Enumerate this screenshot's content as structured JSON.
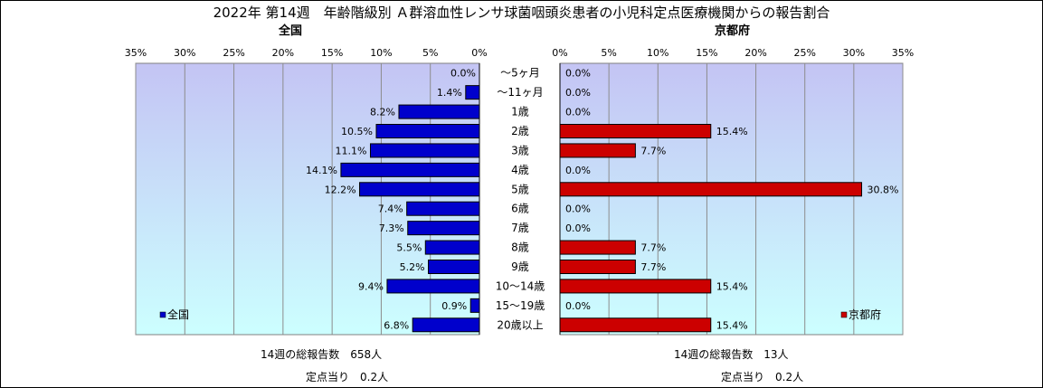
{
  "title": "2022年 第14週　年齢階級別 Ａ群溶血性レンサ球菌咽頭炎患者の小児科定点医療機関からの報告割合",
  "chart_data": [
    {
      "type": "bar",
      "orientation": "horizontal",
      "title": "全国",
      "axis_direction": "reversed",
      "xlim": [
        0,
        35
      ],
      "tick_values": [
        0,
        5,
        10,
        15,
        20,
        25,
        30,
        35
      ],
      "tick_labels": [
        "0%",
        "5%",
        "10%",
        "15%",
        "20%",
        "25%",
        "30%",
        "35%"
      ],
      "grid": true,
      "legend_position": "bottom-left",
      "series": [
        {
          "name": "全国",
          "color": "#0000CC",
          "values": [
            0.0,
            1.4,
            8.2,
            10.5,
            11.1,
            14.1,
            12.2,
            7.4,
            7.3,
            5.5,
            5.2,
            9.4,
            0.9,
            6.8
          ],
          "labels": [
            "0.0%",
            "1.4%",
            "8.2%",
            "10.5%",
            "11.1%",
            "14.1%",
            "12.2%",
            "7.4%",
            "7.3%",
            "5.5%",
            "5.2%",
            "9.4%",
            "0.9%",
            "6.8%"
          ]
        }
      ]
    },
    {
      "type": "bar",
      "orientation": "horizontal",
      "title": "京都府",
      "xlim": [
        0,
        35
      ],
      "tick_values": [
        0,
        5,
        10,
        15,
        20,
        25,
        30,
        35
      ],
      "tick_labels": [
        "0%",
        "5%",
        "10%",
        "15%",
        "20%",
        "25%",
        "30%",
        "35%"
      ],
      "grid": true,
      "legend_position": "bottom-right",
      "series": [
        {
          "name": "京都府",
          "color": "#CC0000",
          "values": [
            0.0,
            0.0,
            0.0,
            15.4,
            7.7,
            0.0,
            30.8,
            0.0,
            0.0,
            7.7,
            7.7,
            15.4,
            0.0,
            15.4
          ],
          "labels": [
            "0.0%",
            "0.0%",
            "0.0%",
            "15.4%",
            "7.7%",
            "0.0%",
            "30.8%",
            "0.0%",
            "0.0%",
            "7.7%",
            "7.7%",
            "15.4%",
            "0.0%",
            "15.4%"
          ]
        }
      ]
    }
  ],
  "categories": [
    "～5ヶ月",
    "～11ヶ月",
    "1歳",
    "2歳",
    "3歳",
    "4歳",
    "5歳",
    "6歳",
    "7歳",
    "8歳",
    "9歳",
    "10～14歳",
    "15～19歳",
    "20歳以上"
  ],
  "footer": {
    "national_total": "14週の総報告数　658人",
    "national_per_site": "定点当り　0.2人",
    "kyoto_total": "14週の総報告数　13人",
    "kyoto_per_site": "定点当り　0.2人"
  },
  "colors": {
    "plot_bg_top": "#c4c4f4",
    "plot_bg_bottom": "#ccffff",
    "grid": "#8c8c8c"
  }
}
